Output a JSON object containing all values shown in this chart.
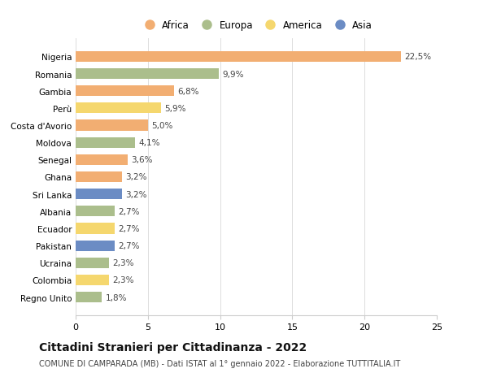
{
  "countries": [
    "Nigeria",
    "Romania",
    "Gambia",
    "Perù",
    "Costa d'Avorio",
    "Moldova",
    "Senegal",
    "Ghana",
    "Sri Lanka",
    "Albania",
    "Ecuador",
    "Pakistan",
    "Ucraina",
    "Colombia",
    "Regno Unito"
  ],
  "values": [
    22.5,
    9.9,
    6.8,
    5.9,
    5.0,
    4.1,
    3.6,
    3.2,
    3.2,
    2.7,
    2.7,
    2.7,
    2.3,
    2.3,
    1.8
  ],
  "labels": [
    "22,5%",
    "9,9%",
    "6,8%",
    "5,9%",
    "5,0%",
    "4,1%",
    "3,6%",
    "3,2%",
    "3,2%",
    "2,7%",
    "2,7%",
    "2,7%",
    "2,3%",
    "2,3%",
    "1,8%"
  ],
  "continents": [
    "Africa",
    "Europa",
    "Africa",
    "America",
    "Africa",
    "Europa",
    "Africa",
    "Africa",
    "Asia",
    "Europa",
    "America",
    "Asia",
    "Europa",
    "America",
    "Europa"
  ],
  "colors": {
    "Africa": "#F2AE72",
    "Europa": "#ABBE8C",
    "America": "#F5D76E",
    "Asia": "#6B8CC4"
  },
  "xlim": [
    0,
    25
  ],
  "xticks": [
    0,
    5,
    10,
    15,
    20,
    25
  ],
  "title": "Cittadini Stranieri per Cittadinanza - 2022",
  "subtitle": "COMUNE DI CAMPARADA (MB) - Dati ISTAT al 1° gennaio 2022 - Elaborazione TUTTITALIA.IT",
  "background_color": "#ffffff",
  "bar_height": 0.62,
  "label_fontsize": 7.5,
  "ytick_fontsize": 7.5,
  "xtick_fontsize": 8,
  "title_fontsize": 10,
  "subtitle_fontsize": 7,
  "legend_order": [
    "Africa",
    "Europa",
    "America",
    "Asia"
  ]
}
